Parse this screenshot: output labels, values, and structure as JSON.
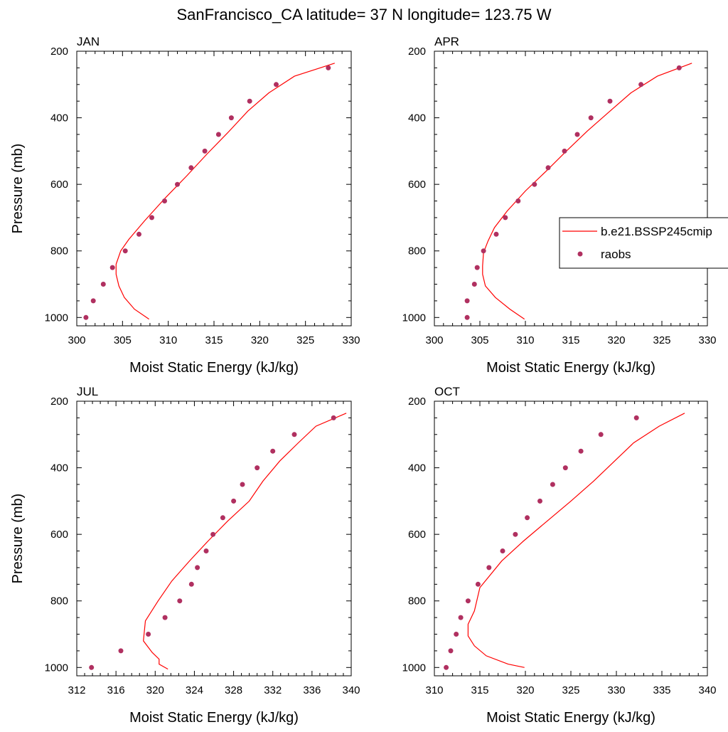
{
  "page": {
    "title": "SanFrancisco_CA  latitude= 37 N longitude= 123.75 W"
  },
  "legend": {
    "placement": "right of APR panel",
    "model_label": "b.e21.BSSP245cmip",
    "obs_label": "raobs"
  },
  "colors": {
    "model_line": "#ff0000",
    "obs_marker": "#b03060",
    "axis": "#000000"
  },
  "chart_data": [
    {
      "type": "line",
      "title": "JAN",
      "xlabel": "Moist Static Energy (kJ/kg)",
      "ylabel": "Pressure (mb)",
      "xlim": [
        300,
        330
      ],
      "ylim": [
        1025,
        200
      ],
      "y_reversed": true,
      "xticks": [
        300,
        305,
        310,
        315,
        320,
        325,
        330
      ],
      "yticks": [
        200,
        400,
        600,
        800,
        1000
      ],
      "series": [
        {
          "name": "b.e21.BSSP245cmip",
          "style": "line",
          "points": [
            [
              328.2,
              236
            ],
            [
              323.8,
              275
            ],
            [
              321.0,
              325
            ],
            [
              318.7,
              380
            ],
            [
              316.5,
              445
            ],
            [
              314.2,
              510
            ],
            [
              312.0,
              575
            ],
            [
              309.7,
              640
            ],
            [
              307.4,
              710
            ],
            [
              305.7,
              765
            ],
            [
              304.8,
              800
            ],
            [
              304.3,
              840
            ],
            [
              304.3,
              870
            ],
            [
              304.6,
              905
            ],
            [
              305.2,
              940
            ],
            [
              306.3,
              975
            ],
            [
              307.9,
              1005
            ]
          ]
        },
        {
          "name": "raobs",
          "style": "scatter",
          "points": [
            [
              327.5,
              250
            ],
            [
              321.8,
              300
            ],
            [
              318.9,
              350
            ],
            [
              316.9,
              400
            ],
            [
              315.5,
              450
            ],
            [
              314.0,
              500
            ],
            [
              312.5,
              550
            ],
            [
              311.0,
              600
            ],
            [
              309.6,
              650
            ],
            [
              308.2,
              700
            ],
            [
              306.8,
              750
            ],
            [
              305.3,
              800
            ],
            [
              303.9,
              850
            ],
            [
              302.9,
              900
            ],
            [
              301.8,
              950
            ],
            [
              301.0,
              1000
            ]
          ]
        }
      ]
    },
    {
      "type": "line",
      "title": "APR",
      "xlabel": "Moist Static Energy (kJ/kg)",
      "ylabel": "",
      "xlim": [
        300,
        330
      ],
      "ylim": [
        1025,
        200
      ],
      "y_reversed": true,
      "xticks": [
        300,
        305,
        310,
        315,
        320,
        325,
        330
      ],
      "yticks": [
        200,
        400,
        600,
        800,
        1000
      ],
      "series": [
        {
          "name": "b.e21.BSSP245cmip",
          "style": "line",
          "points": [
            [
              328.3,
              236
            ],
            [
              324.5,
              275
            ],
            [
              321.6,
              325
            ],
            [
              319.3,
              380
            ],
            [
              316.8,
              440
            ],
            [
              314.5,
              500
            ],
            [
              312.3,
              560
            ],
            [
              310.0,
              620
            ],
            [
              308.0,
              680
            ],
            [
              306.6,
              730
            ],
            [
              305.9,
              770
            ],
            [
              305.4,
              805
            ],
            [
              305.3,
              845
            ],
            [
              305.3,
              870
            ],
            [
              305.6,
              905
            ],
            [
              306.7,
              940
            ],
            [
              308.3,
              975
            ],
            [
              309.9,
              1005
            ]
          ]
        },
        {
          "name": "raobs",
          "style": "scatter",
          "points": [
            [
              326.9,
              250
            ],
            [
              322.7,
              300
            ],
            [
              319.3,
              350
            ],
            [
              317.2,
              400
            ],
            [
              315.7,
              450
            ],
            [
              314.3,
              500
            ],
            [
              312.5,
              550
            ],
            [
              311.0,
              600
            ],
            [
              309.2,
              650
            ],
            [
              307.8,
              700
            ],
            [
              306.8,
              750
            ],
            [
              305.4,
              800
            ],
            [
              304.7,
              850
            ],
            [
              304.4,
              900
            ],
            [
              303.6,
              950
            ],
            [
              303.6,
              1000
            ]
          ]
        }
      ]
    },
    {
      "type": "line",
      "title": "JUL",
      "xlabel": "Moist Static Energy (kJ/kg)",
      "ylabel": "Pressure (mb)",
      "xlim": [
        312,
        340
      ],
      "ylim": [
        1025,
        200
      ],
      "y_reversed": true,
      "xticks": [
        312,
        316,
        320,
        324,
        328,
        332,
        336,
        340
      ],
      "yticks": [
        200,
        400,
        600,
        800,
        1000
      ],
      "series": [
        {
          "name": "b.e21.BSSP245cmip",
          "style": "line",
          "points": [
            [
              339.5,
              236
            ],
            [
              336.4,
              275
            ],
            [
              334.6,
              325
            ],
            [
              332.7,
              380
            ],
            [
              331.0,
              440
            ],
            [
              329.6,
              500
            ],
            [
              327.4,
              560
            ],
            [
              325.4,
              620
            ],
            [
              323.5,
              680
            ],
            [
              321.7,
              740
            ],
            [
              320.3,
              800
            ],
            [
              319.0,
              860
            ],
            [
              318.8,
              920
            ],
            [
              319.7,
              955
            ],
            [
              320.4,
              975
            ],
            [
              320.4,
              990
            ],
            [
              321.3,
              1005
            ]
          ]
        },
        {
          "name": "raobs",
          "style": "scatter",
          "points": [
            [
              338.2,
              250
            ],
            [
              334.2,
              300
            ],
            [
              332.0,
              350
            ],
            [
              330.4,
              400
            ],
            [
              328.9,
              450
            ],
            [
              328.0,
              500
            ],
            [
              326.9,
              550
            ],
            [
              325.9,
              600
            ],
            [
              325.2,
              650
            ],
            [
              324.3,
              700
            ],
            [
              323.7,
              750
            ],
            [
              322.5,
              800
            ],
            [
              321.0,
              850
            ],
            [
              319.3,
              900
            ],
            [
              316.5,
              950
            ],
            [
              313.5,
              1000
            ]
          ]
        }
      ]
    },
    {
      "type": "line",
      "title": "OCT",
      "xlabel": "Moist Static Energy (kJ/kg)",
      "ylabel": "",
      "xlim": [
        310,
        340
      ],
      "ylim": [
        1025,
        200
      ],
      "y_reversed": true,
      "xticks": [
        310,
        315,
        320,
        325,
        330,
        335,
        340
      ],
      "yticks": [
        200,
        400,
        600,
        800,
        1000
      ],
      "series": [
        {
          "name": "b.e21.BSSP245cmip",
          "style": "line",
          "points": [
            [
              337.5,
              236
            ],
            [
              334.7,
              275
            ],
            [
              331.9,
              325
            ],
            [
              329.8,
              380
            ],
            [
              327.5,
              440
            ],
            [
              325.0,
              500
            ],
            [
              322.4,
              560
            ],
            [
              319.8,
              620
            ],
            [
              317.4,
              680
            ],
            [
              315.0,
              760
            ],
            [
              314.4,
              830
            ],
            [
              313.7,
              870
            ],
            [
              313.7,
              905
            ],
            [
              314.4,
              935
            ],
            [
              315.7,
              965
            ],
            [
              318.1,
              990
            ],
            [
              319.9,
              1000
            ]
          ]
        },
        {
          "name": "raobs",
          "style": "scatter",
          "points": [
            [
              332.2,
              250
            ],
            [
              328.3,
              300
            ],
            [
              326.1,
              350
            ],
            [
              324.4,
              400
            ],
            [
              323.0,
              450
            ],
            [
              321.6,
              500
            ],
            [
              320.2,
              550
            ],
            [
              318.9,
              600
            ],
            [
              317.5,
              650
            ],
            [
              316.0,
              700
            ],
            [
              314.8,
              750
            ],
            [
              313.7,
              800
            ],
            [
              312.9,
              850
            ],
            [
              312.4,
              900
            ],
            [
              311.8,
              950
            ],
            [
              311.3,
              1000
            ]
          ]
        }
      ]
    }
  ]
}
